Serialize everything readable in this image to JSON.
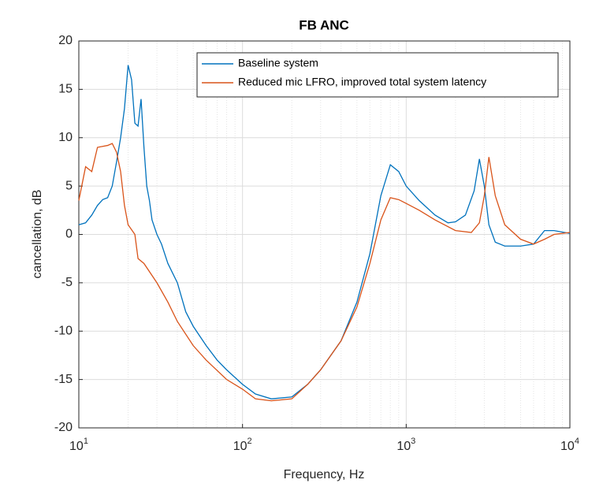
{
  "chart_data": {
    "type": "line",
    "title": "FB ANC",
    "xlabel": "Frequency, Hz",
    "ylabel": "cancellation, dB",
    "xscale": "log",
    "xlim": [
      10,
      10000
    ],
    "ylim": [
      -20,
      20
    ],
    "xticks": [
      {
        "value": 10,
        "label": "10",
        "exponent": "1"
      },
      {
        "value": 100,
        "label": "10",
        "exponent": "2"
      },
      {
        "value": 1000,
        "label": "10",
        "exponent": "3"
      },
      {
        "value": 10000,
        "label": "10",
        "exponent": "4"
      }
    ],
    "yticks": [
      -20,
      -15,
      -10,
      -5,
      0,
      5,
      10,
      15,
      20
    ],
    "grid": true,
    "minor_grid": true,
    "legend": "northeast",
    "series": [
      {
        "name": "Baseline system",
        "color": "#0072bd",
        "x": [
          10,
          11,
          12,
          13,
          14,
          15,
          16,
          17,
          18,
          19,
          20,
          21,
          22,
          23,
          24,
          25,
          26,
          27,
          28,
          30,
          32,
          35,
          40,
          45,
          50,
          60,
          70,
          80,
          100,
          120,
          150,
          200,
          250,
          300,
          400,
          500,
          600,
          700,
          800,
          900,
          1000,
          1200,
          1500,
          1800,
          2000,
          2300,
          2600,
          2800,
          3000,
          3200,
          3500,
          4000,
          5000,
          6000,
          7000,
          8000,
          10000
        ],
        "values": [
          1.0,
          1.2,
          2.0,
          3.0,
          3.6,
          3.8,
          5.0,
          7.5,
          10,
          13,
          17.5,
          16,
          11.5,
          11.2,
          14,
          9,
          5,
          3.5,
          1.5,
          0,
          -1,
          -3,
          -5,
          -8,
          -9.5,
          -11.5,
          -13,
          -14,
          -15.5,
          -16.5,
          -17,
          -16.8,
          -15.5,
          -14,
          -11,
          -7,
          -2,
          4,
          7.2,
          6.5,
          5,
          3.5,
          2,
          1.2,
          1.3,
          2,
          4.5,
          7.8,
          5,
          1,
          -0.8,
          -1.2,
          -1.2,
          -1,
          0.4,
          0.4,
          0.1
        ]
      },
      {
        "name": "Reduced mic LFRO, improved total system latency",
        "color": "#d95319",
        "x": [
          10,
          11,
          12,
          13,
          15,
          16,
          17,
          18,
          19,
          20,
          22,
          23,
          25,
          30,
          35,
          40,
          50,
          60,
          80,
          100,
          120,
          150,
          200,
          250,
          300,
          400,
          500,
          600,
          700,
          800,
          900,
          1000,
          1200,
          1500,
          2000,
          2500,
          2800,
          3000,
          3200,
          3500,
          4000,
          5000,
          6000,
          7000,
          8000,
          10000
        ],
        "values": [
          3.5,
          7,
          6.5,
          9,
          9.2,
          9.4,
          8.5,
          6.5,
          3,
          1,
          0,
          -2.5,
          -3,
          -5,
          -7,
          -9,
          -11.5,
          -13,
          -15,
          -16,
          -17,
          -17.2,
          -17,
          -15.5,
          -14,
          -11,
          -7.5,
          -3,
          1.5,
          3.8,
          3.6,
          3.2,
          2.5,
          1.5,
          0.4,
          0.2,
          1.2,
          4,
          8,
          4,
          1,
          -0.5,
          -1.0,
          -0.5,
          0,
          0.2
        ]
      }
    ]
  }
}
